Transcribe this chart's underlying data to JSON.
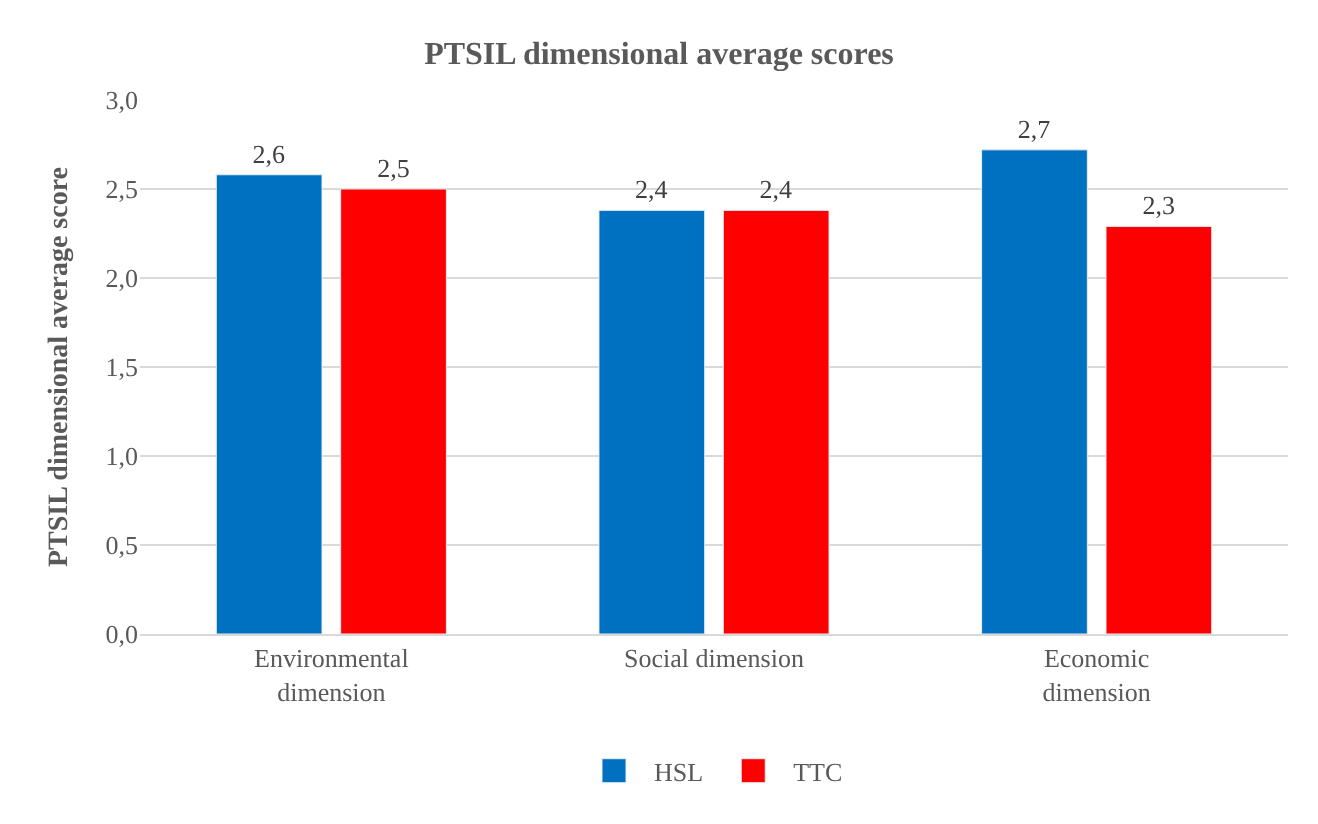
{
  "chart_data": {
    "type": "bar",
    "title": "PTSIL dimensional average scores",
    "ylabel": "PTSIL dimensional average score",
    "categories": [
      "Environmental dimension",
      "Social dimension",
      "Economic dimension"
    ],
    "series": [
      {
        "name": "HSL",
        "color": "#0070c0",
        "values": [
          2.58,
          2.38,
          2.72
        ],
        "value_labels": [
          "2,6",
          "2,4",
          "2,7"
        ]
      },
      {
        "name": "TTC",
        "color": "#ff0000",
        "values": [
          2.5,
          2.38,
          2.29
        ],
        "value_labels": [
          "2,5",
          "2,4",
          "2,3"
        ]
      }
    ],
    "ylim": [
      0,
      3
    ],
    "yticks": [
      {
        "value": 0,
        "label": "0,0"
      },
      {
        "value": 0.5,
        "label": "0,5"
      },
      {
        "value": 1,
        "label": "1,0"
      },
      {
        "value": 1.5,
        "label": "1,5"
      },
      {
        "value": 2,
        "label": "2,0"
      },
      {
        "value": 2.5,
        "label": "2,5"
      },
      {
        "value": 3,
        "label": "3,0"
      }
    ],
    "grid": "y",
    "legend": "bottom"
  }
}
